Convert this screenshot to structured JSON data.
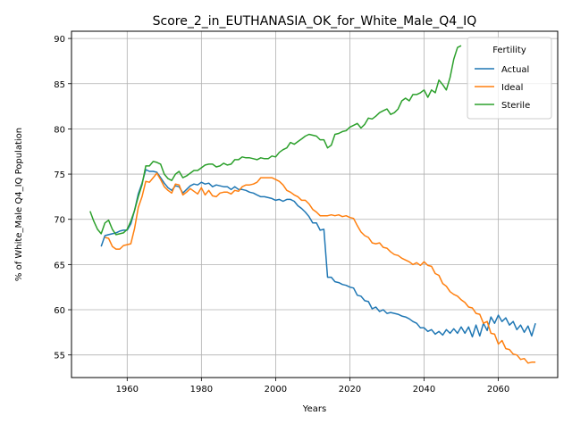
{
  "chart_data": {
    "type": "line",
    "title": "Score_2_in_EUTHANASIA_OK_for_White_Male_Q4_IQ",
    "xlabel": "Years",
    "ylabel": "% of White_Male Q4_IQ Population",
    "xlim": [
      1945,
      2076
    ],
    "ylim": [
      52.5,
      90.8
    ],
    "xticks": [
      1960,
      1980,
      2000,
      2020,
      2040,
      2060
    ],
    "yticks": [
      55,
      60,
      65,
      70,
      75,
      80,
      85,
      90
    ],
    "grid": true,
    "legend": {
      "title": "Fertility",
      "placement": "top-right"
    },
    "series": [
      {
        "name": "Actual",
        "color": "#1f77b4",
        "x": [
          1953,
          1954,
          1955,
          1956,
          1957,
          1958,
          1959,
          1960,
          1961,
          1962,
          1963,
          1964,
          1965,
          1966,
          1967,
          1968,
          1969,
          1970,
          1971,
          1972,
          1973,
          1974,
          1975,
          1976,
          1977,
          1978,
          1979,
          1980,
          1981,
          1982,
          1983,
          1984,
          1985,
          1986,
          1987,
          1988,
          1989,
          1990,
          1991,
          1992,
          1993,
          1994,
          1995,
          1996,
          1997,
          1998,
          1999,
          2000,
          2001,
          2002,
          2003,
          2004,
          2005,
          2006,
          2007,
          2008,
          2009,
          2010,
          2011,
          2012,
          2013,
          2014,
          2015,
          2016,
          2017,
          2018,
          2019,
          2020,
          2021,
          2022,
          2023,
          2024,
          2025,
          2026,
          2027,
          2028,
          2029,
          2030,
          2031,
          2032,
          2033,
          2034,
          2035,
          2036,
          2037,
          2038,
          2039,
          2040,
          2041,
          2042,
          2043,
          2044,
          2045,
          2046,
          2047,
          2048,
          2049,
          2050,
          2051,
          2052,
          2053,
          2054,
          2055,
          2056,
          2057,
          2058,
          2059,
          2060,
          2061,
          2062,
          2063,
          2064,
          2065,
          2066,
          2067,
          2068,
          2069,
          2070
        ],
        "y": [
          67.0,
          68.2,
          68.3,
          68.4,
          68.5,
          68.7,
          68.8,
          68.8,
          69.5,
          71.0,
          72.8,
          74.0,
          75.5,
          75.3,
          75.3,
          75.2,
          74.6,
          74.0,
          73.5,
          73.2,
          73.7,
          73.6,
          72.9,
          73.3,
          73.7,
          73.9,
          73.8,
          74.1,
          73.9,
          74.0,
          73.6,
          73.8,
          73.7,
          73.6,
          73.6,
          73.3,
          73.6,
          73.3,
          73.3,
          73.2,
          73.0,
          72.9,
          72.7,
          72.5,
          72.5,
          72.4,
          72.3,
          72.1,
          72.2,
          72.0,
          72.2,
          72.2,
          72.0,
          71.5,
          71.2,
          70.8,
          70.3,
          69.6,
          69.6,
          68.8,
          68.9,
          63.6,
          63.6,
          63.1,
          63.0,
          62.8,
          62.7,
          62.5,
          62.4,
          61.6,
          61.5,
          61.0,
          60.9,
          60.1,
          60.3,
          59.8,
          60.0,
          59.6,
          59.7,
          59.6,
          59.5,
          59.3,
          59.2,
          59.0,
          58.7,
          58.5,
          58.0,
          58.0,
          57.6,
          57.8,
          57.3,
          57.6,
          57.2,
          57.8,
          57.4,
          57.9,
          57.4,
          58.1,
          57.4,
          58.1,
          57.0,
          58.3,
          57.1,
          58.5,
          57.7,
          59.2,
          58.5,
          59.4,
          58.7,
          59.1,
          58.3,
          58.7,
          57.8,
          58.3,
          57.5,
          58.2,
          57.1,
          58.5
        ]
      },
      {
        "name": "Ideal",
        "color": "#ff7f0e",
        "x": [
          1954,
          1955,
          1956,
          1957,
          1958,
          1959,
          1960,
          1961,
          1962,
          1963,
          1964,
          1965,
          1966,
          1967,
          1968,
          1969,
          1970,
          1971,
          1972,
          1973,
          1974,
          1975,
          1976,
          1977,
          1978,
          1979,
          1980,
          1981,
          1982,
          1983,
          1984,
          1985,
          1986,
          1987,
          1988,
          1989,
          1990,
          1991,
          1992,
          1993,
          1994,
          1995,
          1996,
          1997,
          1998,
          1999,
          2000,
          2001,
          2002,
          2003,
          2004,
          2005,
          2006,
          2007,
          2008,
          2009,
          2010,
          2011,
          2012,
          2013,
          2014,
          2015,
          2016,
          2017,
          2018,
          2019,
          2020,
          2021,
          2022,
          2023,
          2024,
          2025,
          2026,
          2027,
          2028,
          2029,
          2030,
          2031,
          2032,
          2033,
          2034,
          2035,
          2036,
          2037,
          2038,
          2039,
          2040,
          2041,
          2042,
          2043,
          2044,
          2045,
          2046,
          2047,
          2048,
          2049,
          2050,
          2051,
          2052,
          2053,
          2054,
          2055,
          2056,
          2057,
          2058,
          2059,
          2060,
          2061,
          2062,
          2063,
          2064,
          2065,
          2066,
          2067,
          2068,
          2069,
          2070
        ],
        "y": [
          68.0,
          67.9,
          67.0,
          66.7,
          66.7,
          67.1,
          67.2,
          67.3,
          69.0,
          71.3,
          72.5,
          74.2,
          74.1,
          74.6,
          75.1,
          74.4,
          73.6,
          73.2,
          72.9,
          73.9,
          73.8,
          72.7,
          73.0,
          73.4,
          73.1,
          72.8,
          73.5,
          72.7,
          73.2,
          72.6,
          72.5,
          72.9,
          73.0,
          73.0,
          72.8,
          73.2,
          73.1,
          73.6,
          73.8,
          73.8,
          73.9,
          74.1,
          74.6,
          74.6,
          74.6,
          74.6,
          74.4,
          74.2,
          73.8,
          73.2,
          73.0,
          72.7,
          72.5,
          72.1,
          72.1,
          71.7,
          71.1,
          70.8,
          70.4,
          70.4,
          70.4,
          70.5,
          70.4,
          70.5,
          70.3,
          70.4,
          70.2,
          70.1,
          69.3,
          68.6,
          68.2,
          68.0,
          67.4,
          67.3,
          67.4,
          66.9,
          66.8,
          66.4,
          66.1,
          66.0,
          65.7,
          65.5,
          65.3,
          65.0,
          65.2,
          64.9,
          65.3,
          64.9,
          64.8,
          64.0,
          63.8,
          62.9,
          62.6,
          62.0,
          61.7,
          61.5,
          61.1,
          60.8,
          60.3,
          60.2,
          59.6,
          59.5,
          58.5,
          58.7,
          57.4,
          57.3,
          56.2,
          56.6,
          55.7,
          55.6,
          55.1,
          55.0,
          54.5,
          54.6,
          54.1,
          54.2,
          54.2
        ]
      },
      {
        "name": "Sterile",
        "color": "#2ca02c",
        "x": [
          1950,
          1951,
          1952,
          1953,
          1954,
          1955,
          1956,
          1957,
          1958,
          1959,
          1960,
          1961,
          1962,
          1963,
          1964,
          1965,
          1966,
          1967,
          1968,
          1969,
          1970,
          1971,
          1972,
          1973,
          1974,
          1975,
          1976,
          1977,
          1978,
          1979,
          1980,
          1981,
          1982,
          1983,
          1984,
          1985,
          1986,
          1987,
          1988,
          1989,
          1990,
          1991,
          1992,
          1993,
          1994,
          1995,
          1996,
          1997,
          1998,
          1999,
          2000,
          2001,
          2002,
          2003,
          2004,
          2005,
          2006,
          2007,
          2008,
          2009,
          2010,
          2011,
          2012,
          2013,
          2014,
          2015,
          2016,
          2017,
          2018,
          2019,
          2020,
          2021,
          2022,
          2023,
          2024,
          2025,
          2026,
          2027,
          2028,
          2029,
          2030,
          2031,
          2032,
          2033,
          2034,
          2035,
          2036,
          2037,
          2038,
          2039,
          2040,
          2041,
          2042,
          2043,
          2044,
          2045,
          2046,
          2047,
          2048,
          2049,
          2050
        ],
        "y": [
          70.9,
          69.8,
          68.9,
          68.4,
          69.6,
          69.9,
          68.9,
          68.3,
          68.4,
          68.5,
          68.9,
          69.8,
          71.0,
          72.5,
          73.8,
          75.9,
          75.9,
          76.4,
          76.3,
          76.1,
          75.0,
          74.5,
          74.3,
          75.0,
          75.3,
          74.6,
          74.8,
          75.1,
          75.4,
          75.4,
          75.7,
          76.0,
          76.1,
          76.1,
          75.8,
          75.9,
          76.2,
          76.0,
          76.1,
          76.6,
          76.6,
          76.9,
          76.8,
          76.8,
          76.7,
          76.6,
          76.8,
          76.7,
          76.7,
          77.0,
          76.9,
          77.4,
          77.7,
          77.9,
          78.5,
          78.3,
          78.6,
          78.9,
          79.2,
          79.4,
          79.3,
          79.2,
          78.8,
          78.8,
          77.9,
          78.2,
          79.4,
          79.5,
          79.7,
          79.8,
          80.2,
          80.4,
          80.6,
          80.1,
          80.5,
          81.2,
          81.1,
          81.4,
          81.8,
          82.0,
          82.2,
          81.6,
          81.8,
          82.2,
          83.1,
          83.4,
          83.1,
          83.8,
          83.8,
          84.0,
          84.3,
          83.5,
          84.3,
          84.0,
          85.4,
          84.9,
          84.3,
          85.7,
          87.7,
          89.0,
          89.2
        ]
      }
    ]
  }
}
